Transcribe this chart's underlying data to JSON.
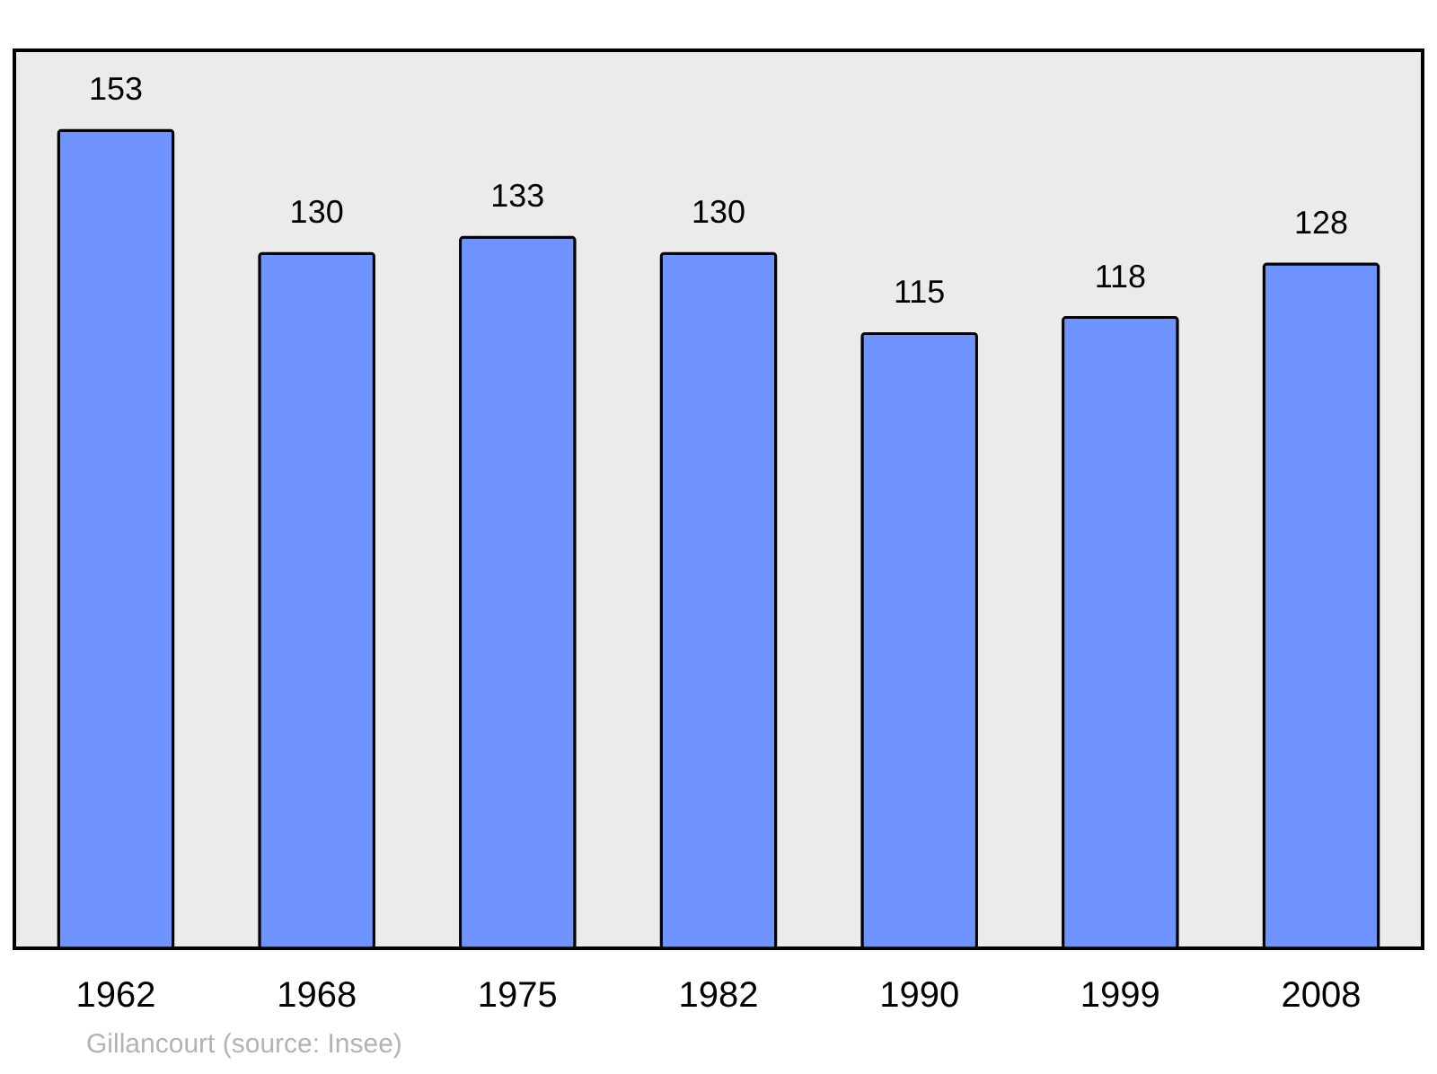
{
  "chart_data": {
    "type": "bar",
    "categories": [
      "1962",
      "1968",
      "1975",
      "1982",
      "1990",
      "1999",
      "2008"
    ],
    "values": [
      153,
      130,
      133,
      130,
      115,
      118,
      128
    ],
    "color": "#7094ff",
    "ylim": [
      0,
      168
    ],
    "data_labels": true,
    "grid": false,
    "tick_labels": "x",
    "annotations": [
      "Gillancourt    (source: Insee)"
    ]
  }
}
